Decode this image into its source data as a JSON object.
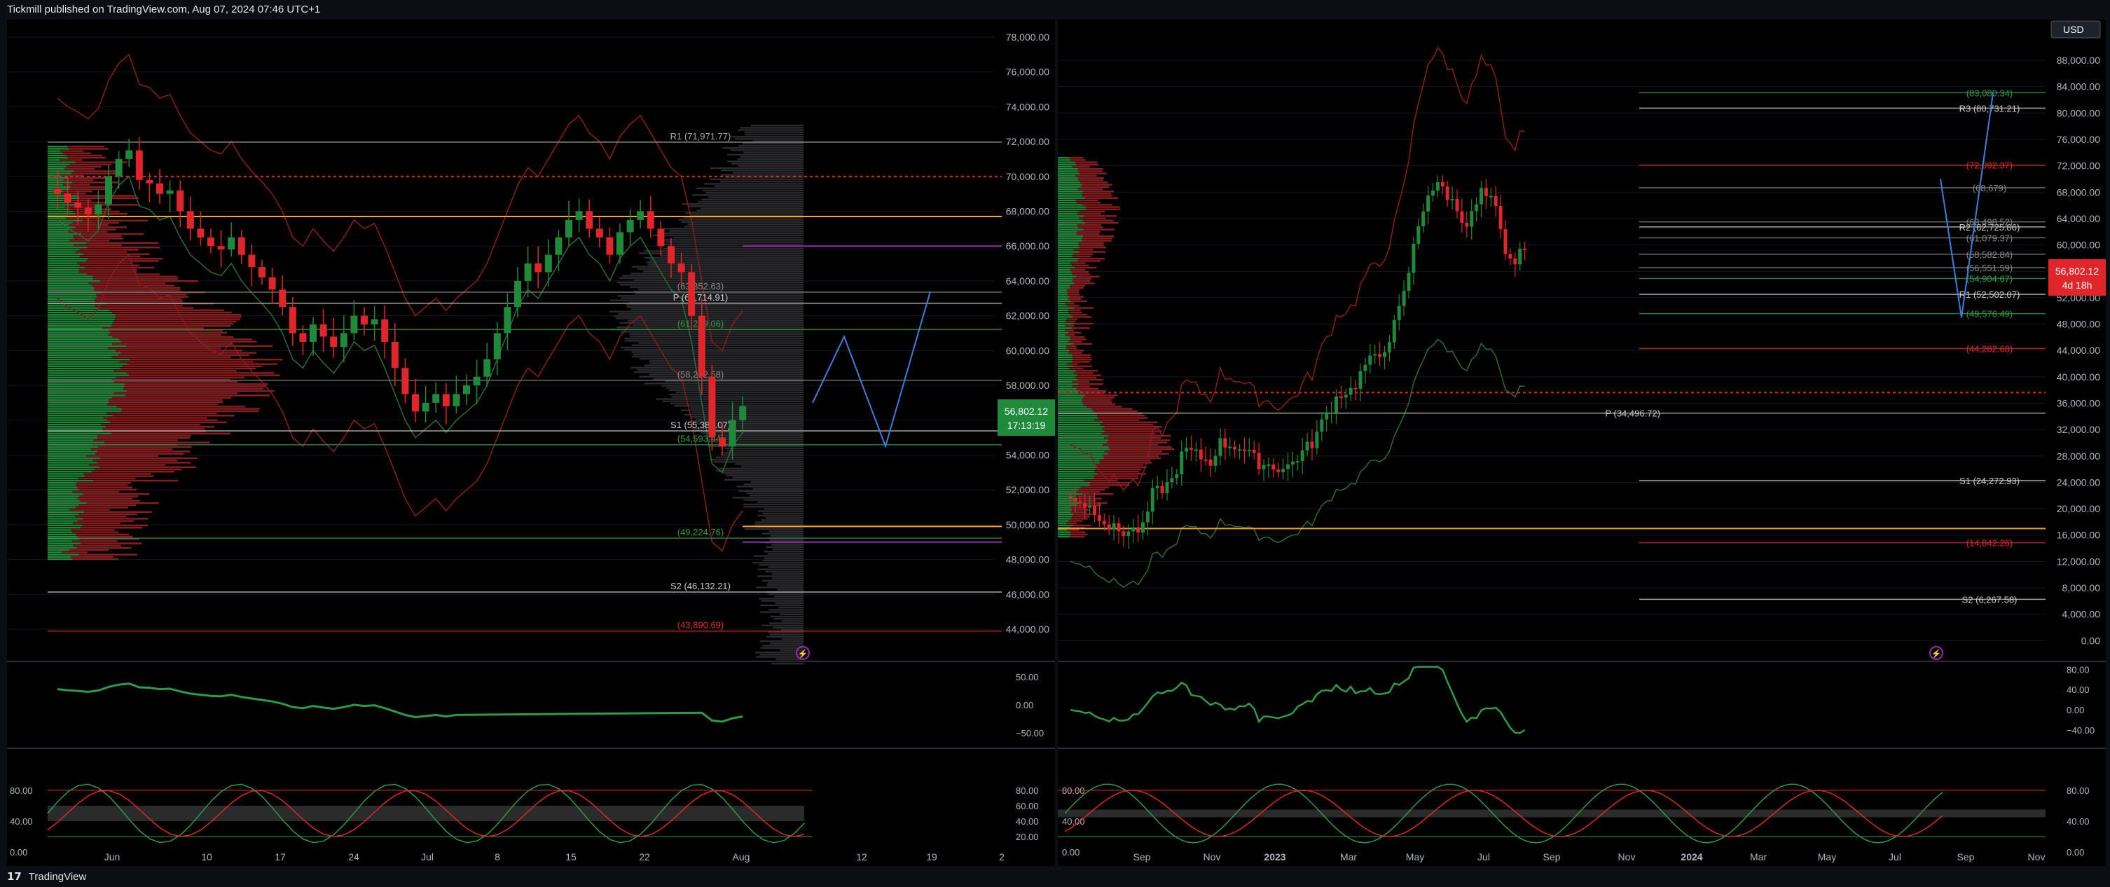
{
  "header": {
    "publisher": "Tickmill published on TradingView.com, Aug 07, 2024 07:46 UTC+1"
  },
  "footer": {
    "brand_mark": "𝟭𝟳",
    "brand": "TradingView"
  },
  "colors": {
    "up": "#1f8a3a",
    "down": "#e0262b",
    "accent": "#9c27b0",
    "price_tag": "#e0262b"
  },
  "left_chart": {
    "y_ticks": [
      "78,000.00",
      "76,000.00",
      "74,000.00",
      "72,000.00",
      "70,000.00",
      "68,000.00",
      "66,000.00",
      "64,000.00",
      "62,000.00",
      "60,000.00",
      "58,000.00",
      "56,000.00",
      "54,000.00",
      "52,000.00",
      "50,000.00",
      "48,000.00",
      "46,000.00",
      "44,000.00"
    ],
    "last_price": "56,802.12",
    "countdown": "17:13:19",
    "levels": [
      {
        "label": "R1 (71,971.77)",
        "value": 71971.77,
        "color": "#aaaaaa"
      },
      {
        "label": "(63,352.63)",
        "value": 63352.63,
        "color": "#888888"
      },
      {
        "label": "P (62,714.91)",
        "value": 62714.91,
        "color": "#cccccc"
      },
      {
        "label": "(61,209.06)",
        "value": 61209.06,
        "color": "#2a9d48"
      },
      {
        "label": "(58,292.58)",
        "value": 58292.58,
        "color": "#888888"
      },
      {
        "label": "S1 (55,389.07)",
        "value": 55389.07,
        "color": "#cccccc"
      },
      {
        "label": "(54,593.44)",
        "value": 54593.44,
        "color": "#2a9d48"
      },
      {
        "label": "(49,224.76)",
        "value": 49224.76,
        "color": "#2a9d48"
      },
      {
        "label": "S2 (46,132.21)",
        "value": 46132.21,
        "color": "#cccccc"
      },
      {
        "label": "(43,890.69)",
        "value": 43890.69,
        "color": "#e0262b"
      }
    ],
    "rsi_ticks": [
      "50.00",
      "0.00",
      "−50.00"
    ],
    "stoch_ticks_right": [
      "80.00",
      "60.00",
      "40.00",
      "20.00"
    ],
    "stoch_ticks_left": [
      "80.00",
      "40.00",
      "0.00"
    ],
    "x_ticks": [
      "Jun",
      "10",
      "17",
      "24",
      "Jul",
      "8",
      "15",
      "22",
      "Aug",
      "12",
      "19",
      "2"
    ]
  },
  "right_chart": {
    "currency": "USD",
    "y_ticks": [
      "88,000.00",
      "84,000.00",
      "80,000.00",
      "76,000.00",
      "72,000.00",
      "68,000.00",
      "64,000.00",
      "60,000.00",
      "56,000.00",
      "52,000.00",
      "48,000.00",
      "44,000.00",
      "40,000.00",
      "36,000.00",
      "32,000.00",
      "28,000.00",
      "24,000.00",
      "20,000.00",
      "16,000.00",
      "12,000.00",
      "8,000.00",
      "4,000.00",
      "0.00"
    ],
    "last_price": "56,802.12",
    "countdown": "4d 18h",
    "levels": [
      {
        "label": "(83,080.34)",
        "value": 83080.34,
        "color": "#2a9d48"
      },
      {
        "label": "R3 (80,731.21)",
        "value": 80731.21,
        "color": "#cccccc"
      },
      {
        "label": "(72,092.37)",
        "value": 72092.37,
        "color": "#e0262b"
      },
      {
        "label": "(68,679)",
        "value": 68679,
        "color": "#888888"
      },
      {
        "label": "R2 (62,725.86)",
        "value": 62725.86,
        "color": "#cccccc"
      },
      {
        "label": "(63,498.52)",
        "value": 63498.52,
        "color": "#888888"
      },
      {
        "label": "(61,079.37)",
        "value": 61079.37,
        "color": "#888888"
      },
      {
        "label": "(58,582.84)",
        "value": 58582.84,
        "color": "#888888"
      },
      {
        "label": "(56,551.59)",
        "value": 56551.59,
        "color": "#888888"
      },
      {
        "label": "(54,904.67)",
        "value": 54904.67,
        "color": "#2a9d48"
      },
      {
        "label": "R1 (52,502.07)",
        "value": 52502.07,
        "color": "#cccccc"
      },
      {
        "label": "(49,576.49)",
        "value": 49576.49,
        "color": "#2a9d48"
      },
      {
        "label": "(44,282.68)",
        "value": 44282.68,
        "color": "#e0262b"
      },
      {
        "label": "P (34,496.72)",
        "value": 34496.72,
        "color": "#cccccc"
      },
      {
        "label": "S1 (24,272.93)",
        "value": 24272.93,
        "color": "#cccccc"
      },
      {
        "label": "(14,842.26)",
        "value": 14842.26,
        "color": "#e0262b"
      },
      {
        "label": "S2 (6,267.58)",
        "value": 6267.58,
        "color": "#cccccc"
      }
    ],
    "rsi_ticks": [
      "80.00",
      "40.00",
      "0.00",
      "−40.00"
    ],
    "stoch_ticks": [
      "80.00",
      "40.00",
      "0.00"
    ],
    "x_ticks": [
      "Sep",
      "Nov",
      "2023",
      "Mar",
      "May",
      "Jul",
      "Sep",
      "Nov",
      "2024",
      "Mar",
      "May",
      "Jul",
      "Sep",
      "Nov"
    ]
  }
}
